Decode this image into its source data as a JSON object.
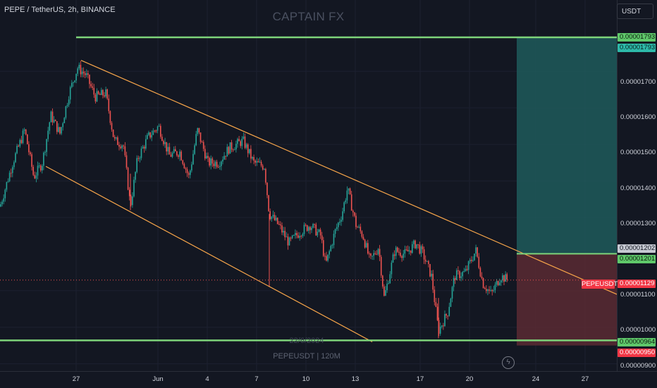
{
  "header": {
    "symbol_title": "PEPE / TetherUS, 2h, BINANCE",
    "watermark": "CAPTAIN FX",
    "currency_button": "USDT"
  },
  "watermark_bottom": {
    "date": "22/6/2024",
    "symbol": "PEPEUSDT | 120M"
  },
  "icons": {
    "bolt": "lightning-icon"
  },
  "y_axis": {
    "ticks": [
      "0.00001700",
      "0.00001600",
      "0.00001500",
      "0.00001400",
      "0.00001300",
      "0.00001100",
      "0.00001000",
      "0.00000900"
    ]
  },
  "x_axis": {
    "ticks": [
      "27",
      "Jun",
      "4",
      "7",
      "10",
      "13",
      "17",
      "20",
      "24",
      "27"
    ]
  },
  "price_labels": {
    "target_top": "0.00001793",
    "target_top_2": "0.00001793",
    "entry_upper": "0.00001202",
    "entry": "0.00001201",
    "last": "0.00001129",
    "stop_line": "0.00000964",
    "stop": "0.00000950",
    "symbol_tag": "PEPEUSDT"
  },
  "colors": {
    "background": "#131722",
    "candle_up": "#26a69a",
    "candle_down": "#ef5350",
    "channel": "#f7a54a",
    "level_line": "#7ed47a",
    "target_zone": "#1e5a5a",
    "stop_zone": "#5a2a33"
  },
  "chart_data": {
    "type": "candlestick",
    "title": "PEPE / TetherUS, 2h, BINANCE",
    "x_ticks": [
      "27",
      "Jun",
      "4",
      "7",
      "10",
      "13",
      "17",
      "20",
      "24",
      "27"
    ],
    "y_ticks": [
      1.7e-05,
      1.6e-05,
      1.5e-05,
      1.4e-05,
      1.3e-05,
      1.1e-05,
      1e-05,
      9e-06
    ],
    "ylim": [
      8.8e-06,
      1.895e-05
    ],
    "close_path": [
      {
        "x": 0,
        "y": 1.33e-05
      },
      {
        "x": 18,
        "y": 1.45e-05
      },
      {
        "x": 35,
        "y": 1.54e-05
      },
      {
        "x": 48,
        "y": 1.41e-05
      },
      {
        "x": 60,
        "y": 1.45e-05
      },
      {
        "x": 72,
        "y": 1.58e-05
      },
      {
        "x": 85,
        "y": 1.53e-05
      },
      {
        "x": 98,
        "y": 1.64e-05
      },
      {
        "x": 110,
        "y": 1.71e-05
      },
      {
        "x": 122,
        "y": 1.69e-05
      },
      {
        "x": 135,
        "y": 1.63e-05
      },
      {
        "x": 150,
        "y": 1.64e-05
      },
      {
        "x": 162,
        "y": 1.51e-05
      },
      {
        "x": 175,
        "y": 1.5e-05
      },
      {
        "x": 185,
        "y": 1.33e-05
      },
      {
        "x": 195,
        "y": 1.46e-05
      },
      {
        "x": 210,
        "y": 1.52e-05
      },
      {
        "x": 225,
        "y": 1.55e-05
      },
      {
        "x": 240,
        "y": 1.47e-05
      },
      {
        "x": 255,
        "y": 1.48e-05
      },
      {
        "x": 268,
        "y": 1.41e-05
      },
      {
        "x": 280,
        "y": 1.54e-05
      },
      {
        "x": 295,
        "y": 1.45e-05
      },
      {
        "x": 310,
        "y": 1.45e-05
      },
      {
        "x": 325,
        "y": 1.49e-05
      },
      {
        "x": 345,
        "y": 1.51e-05
      },
      {
        "x": 360,
        "y": 1.45e-05
      },
      {
        "x": 375,
        "y": 1.44e-05
      },
      {
        "x": 382,
        "y": 1.31e-05
      },
      {
        "x": 395,
        "y": 1.28e-05
      },
      {
        "x": 410,
        "y": 1.23e-05
      },
      {
        "x": 425,
        "y": 1.26e-05
      },
      {
        "x": 440,
        "y": 1.28e-05
      },
      {
        "x": 455,
        "y": 1.25e-05
      },
      {
        "x": 462,
        "y": 1.17e-05
      },
      {
        "x": 475,
        "y": 1.26e-05
      },
      {
        "x": 485,
        "y": 1.31e-05
      },
      {
        "x": 493,
        "y": 1.38e-05
      },
      {
        "x": 505,
        "y": 1.28e-05
      },
      {
        "x": 515,
        "y": 1.25e-05
      },
      {
        "x": 525,
        "y": 1.18e-05
      },
      {
        "x": 537,
        "y": 1.22e-05
      },
      {
        "x": 545,
        "y": 1.08e-05
      },
      {
        "x": 560,
        "y": 1.21e-05
      },
      {
        "x": 575,
        "y": 1.2e-05
      },
      {
        "x": 590,
        "y": 1.23e-05
      },
      {
        "x": 600,
        "y": 1.2e-05
      },
      {
        "x": 612,
        "y": 1.14e-05
      },
      {
        "x": 622,
        "y": 9.9e-06
      },
      {
        "x": 635,
        "y": 1.04e-05
      },
      {
        "x": 645,
        "y": 1.14e-05
      },
      {
        "x": 660,
        "y": 1.15e-05
      },
      {
        "x": 675,
        "y": 1.21e-05
      },
      {
        "x": 685,
        "y": 1.12e-05
      },
      {
        "x": 697,
        "y": 1.09e-05
      },
      {
        "x": 710,
        "y": 1.14e-05
      },
      {
        "x": 720,
        "y": 1.13e-05
      }
    ],
    "levels": {
      "target": 1.793e-05,
      "entry": 1.201e-05,
      "stop_line": 9.64e-06,
      "stop": 9.5e-06,
      "last": 1.129e-05
    },
    "channel": {
      "upper": {
        "x1": 115,
        "y1": 1.73e-05,
        "x2": 875,
        "y2": 1.09e-05
      },
      "lower": {
        "x1": 65,
        "y1": 1.44e-05,
        "x2": 528,
        "y2": 9.6e-06
      }
    }
  }
}
